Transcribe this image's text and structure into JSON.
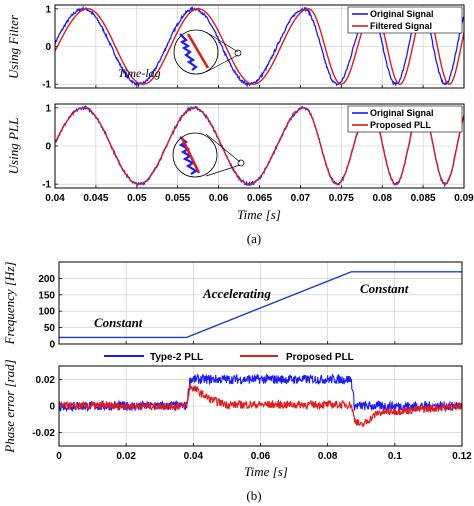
{
  "colors": {
    "original": "#1a1aff",
    "filtered": "#e31a1a",
    "type2": "#1a1aff",
    "proposed": "#e31a1a",
    "frequency": "#1a40c8"
  },
  "panel_a_top": {
    "ylabel": "Using Filter",
    "legend": [
      "Original Signal",
      "Filtered Signal"
    ],
    "annotation": "Time-lag"
  },
  "panel_a_bottom": {
    "ylabel": "Using PLL",
    "legend": [
      "Original Signal",
      "Proposed PLL"
    ],
    "xlabel": "Time [s]"
  },
  "caption_a": "(a)",
  "panel_b_top": {
    "ylabel": "Frequency [Hz]",
    "annotations": [
      "Constant",
      "Accelerating",
      "Constant"
    ]
  },
  "panel_b_bottom": {
    "ylabel": "Phase error [rad]",
    "legend": [
      "Type-2 PLL",
      "Proposed PLL"
    ],
    "xlabel": "Time [s]"
  },
  "caption_b": "(b)",
  "chart_data": [
    {
      "type": "line",
      "title": "",
      "ylabel": "Using Filter",
      "xlabel": "",
      "xlim": [
        0.04,
        0.09
      ],
      "ylim": [
        -1.1,
        1.1
      ],
      "x_ticks": [
        0.04,
        0.045,
        0.05,
        0.055,
        0.06,
        0.065,
        0.07,
        0.075,
        0.08,
        0.085,
        0.09
      ],
      "x_tick_labels": [],
      "y_ticks": [
        -1,
        0,
        1
      ],
      "y_tick_labels": [
        "-1",
        "0",
        "1"
      ],
      "grid": true,
      "legend": "top-right",
      "annotation": "Time-lag",
      "series": [
        {
          "name": "Original Signal",
          "description": "chirp sinusoid, frequency increasing, with noise",
          "peak_times": [
            0.057,
            0.0705,
            0.0785,
            0.0848
          ]
        },
        {
          "name": "Filtered Signal",
          "description": "filtered sinusoid with time lag",
          "peak_times": [
            0.0575,
            0.071,
            0.079,
            0.0853
          ]
        }
      ]
    },
    {
      "type": "line",
      "title": "",
      "ylabel": "Using PLL",
      "xlabel": "Time [s]",
      "xlim": [
        0.04,
        0.09
      ],
      "ylim": [
        -1.1,
        1.1
      ],
      "x_ticks": [
        0.04,
        0.045,
        0.05,
        0.055,
        0.06,
        0.065,
        0.07,
        0.075,
        0.08,
        0.085,
        0.09
      ],
      "x_tick_labels": [
        "0.04",
        "0.045",
        "0.05",
        "0.055",
        "0.06",
        "0.065",
        "0.07",
        "0.075",
        "0.08",
        "0.085",
        "0.09"
      ],
      "y_ticks": [
        -1,
        0,
        1
      ],
      "y_tick_labels": [
        "-1",
        "0",
        "1"
      ],
      "grid": true,
      "legend": "top-right",
      "series": [
        {
          "name": "Original Signal",
          "description": "chirp sinusoid with noise",
          "peak_times": [
            0.057,
            0.0705,
            0.0785,
            0.0848
          ]
        },
        {
          "name": "Proposed PLL",
          "description": "tracks signal with no lag",
          "peak_times": [
            0.057,
            0.0705,
            0.0785,
            0.0848
          ]
        }
      ]
    },
    {
      "type": "line",
      "title": "",
      "ylabel": "Frequency [Hz]",
      "xlabel": "",
      "xlim": [
        0,
        0.12
      ],
      "ylim": [
        0,
        250
      ],
      "x_ticks": [
        0,
        0.02,
        0.04,
        0.06,
        0.08,
        0.1,
        0.12
      ],
      "x_tick_labels": [],
      "y_ticks": [
        0,
        50,
        100,
        150,
        200
      ],
      "y_tick_labels": [
        "0",
        "50",
        "100",
        "150",
        "200"
      ],
      "grid": true,
      "annotations": [
        "Constant",
        "Accelerating",
        "Constant"
      ],
      "series": [
        {
          "x": [
            0,
            0.038,
            0.087,
            0.12
          ],
          "y": [
            20,
            20,
            220,
            220
          ]
        }
      ]
    },
    {
      "type": "line",
      "title": "",
      "ylabel": "Phase error [rad]",
      "xlabel": "Time [s]",
      "xlim": [
        0,
        0.12
      ],
      "ylim": [
        -0.03,
        0.03
      ],
      "x_ticks": [
        0,
        0.02,
        0.04,
        0.06,
        0.08,
        0.1,
        0.12
      ],
      "x_tick_labels": [
        "0",
        "0.02",
        "0.04",
        "0.06",
        "0.08",
        "0.1",
        "0.12"
      ],
      "y_ticks": [
        -0.02,
        0,
        0.02
      ],
      "y_tick_labels": [
        "-0.02",
        "0",
        "0.02"
      ],
      "grid": true,
      "legend": "top",
      "series": [
        {
          "name": "Type-2 PLL",
          "x": [
            0,
            0.038,
            0.039,
            0.087,
            0.088,
            0.12
          ],
          "y": [
            0,
            0,
            0.02,
            0.02,
            0,
            0
          ]
        },
        {
          "name": "Proposed PLL",
          "x": [
            0,
            0.038,
            0.039,
            0.045,
            0.05,
            0.087,
            0.088,
            0.09,
            0.095,
            0.12
          ],
          "y": [
            0,
            0,
            0.015,
            0.005,
            0.001,
            0.001,
            -0.01,
            -0.015,
            -0.005,
            0
          ]
        }
      ]
    }
  ]
}
